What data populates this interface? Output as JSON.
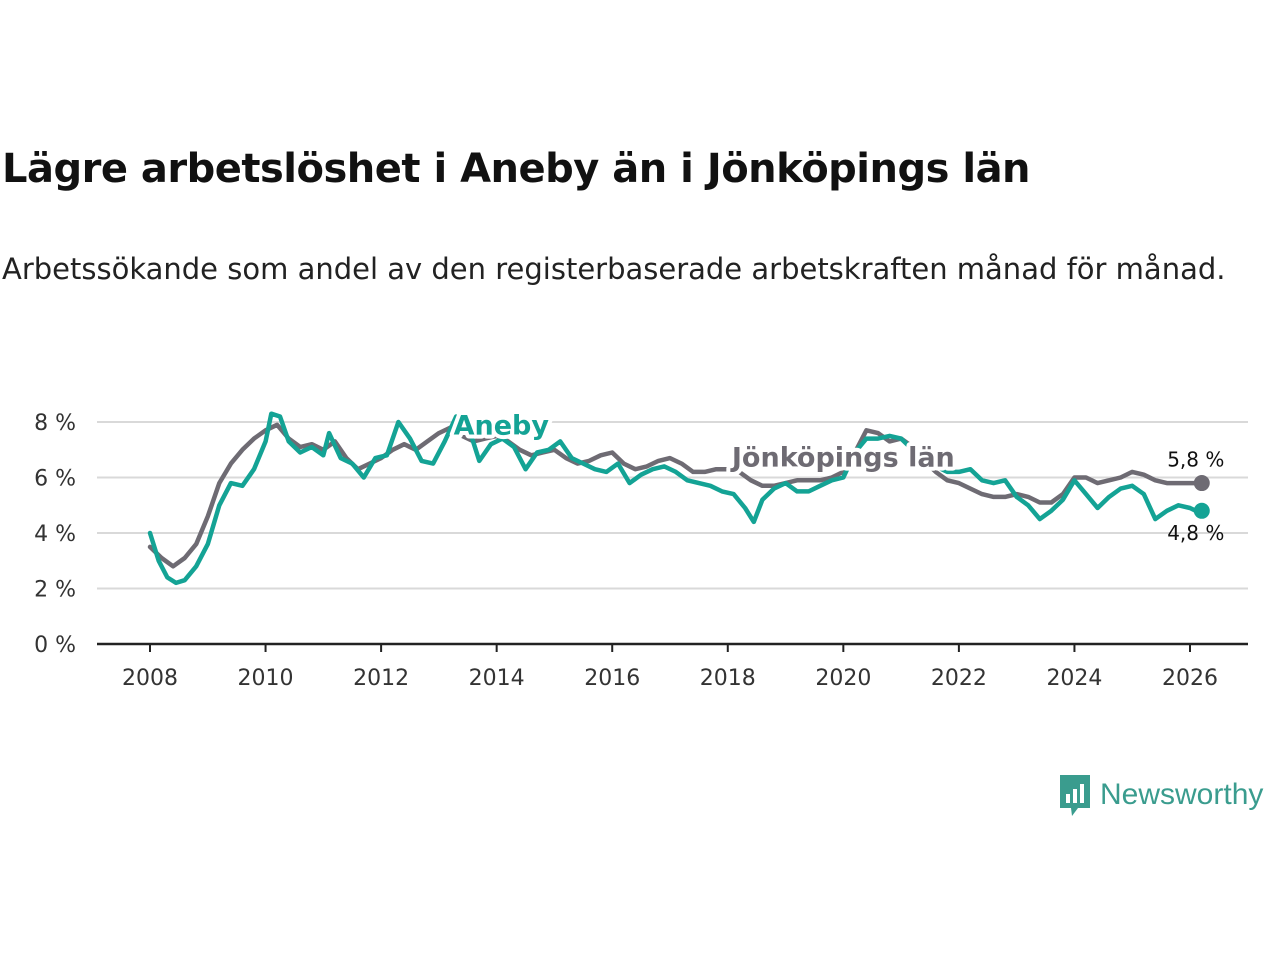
{
  "chart_data": {
    "type": "line",
    "title": "Lägre arbetslöshet i Aneby än i Jönköpings län",
    "subtitle": "Arbetssökande som andel av den registerbaserade arbetskraften månad för månad.",
    "xlim": [
      2007.8,
      2026.95
    ],
    "ylim": [
      0,
      8.3
    ],
    "x_ticks": [
      2008,
      2010,
      2012,
      2014,
      2016,
      2018,
      2020,
      2022,
      2024,
      2026
    ],
    "x_tick_labels": [
      "2008",
      "2010",
      "2012",
      "2014",
      "2016",
      "2018",
      "2020",
      "2022",
      "2024",
      "2026"
    ],
    "y_ticks": [
      0,
      2,
      4,
      6,
      8
    ],
    "y_tick_labels": [
      "0 %",
      "2 %",
      "4 %",
      "6 %",
      "8 %"
    ],
    "series": [
      {
        "name": "Jönköpings län",
        "color": "#6e6b73",
        "end_label": "5,8 %",
        "points": [
          [
            2008.0,
            3.5
          ],
          [
            2008.2,
            3.1
          ],
          [
            2008.4,
            2.8
          ],
          [
            2008.6,
            3.1
          ],
          [
            2008.8,
            3.6
          ],
          [
            2009.0,
            4.6
          ],
          [
            2009.2,
            5.8
          ],
          [
            2009.4,
            6.5
          ],
          [
            2009.6,
            7.0
          ],
          [
            2009.8,
            7.4
          ],
          [
            2010.0,
            7.7
          ],
          [
            2010.2,
            7.9
          ],
          [
            2010.4,
            7.4
          ],
          [
            2010.6,
            7.1
          ],
          [
            2010.8,
            7.2
          ],
          [
            2011.0,
            7.0
          ],
          [
            2011.2,
            7.3
          ],
          [
            2011.4,
            6.7
          ],
          [
            2011.6,
            6.3
          ],
          [
            2011.8,
            6.5
          ],
          [
            2012.0,
            6.7
          ],
          [
            2012.2,
            7.0
          ],
          [
            2012.4,
            7.2
          ],
          [
            2012.6,
            7.0
          ],
          [
            2012.8,
            7.3
          ],
          [
            2013.0,
            7.6
          ],
          [
            2013.2,
            7.8
          ],
          [
            2013.4,
            7.5
          ],
          [
            2013.6,
            7.3
          ],
          [
            2013.8,
            7.4
          ],
          [
            2014.0,
            7.5
          ],
          [
            2014.2,
            7.3
          ],
          [
            2014.4,
            7.0
          ],
          [
            2014.6,
            6.8
          ],
          [
            2014.8,
            6.9
          ],
          [
            2015.0,
            7.0
          ],
          [
            2015.2,
            6.7
          ],
          [
            2015.4,
            6.5
          ],
          [
            2015.6,
            6.6
          ],
          [
            2015.8,
            6.8
          ],
          [
            2016.0,
            6.9
          ],
          [
            2016.2,
            6.5
          ],
          [
            2016.4,
            6.3
          ],
          [
            2016.6,
            6.4
          ],
          [
            2016.8,
            6.6
          ],
          [
            2017.0,
            6.7
          ],
          [
            2017.2,
            6.5
          ],
          [
            2017.4,
            6.2
          ],
          [
            2017.6,
            6.2
          ],
          [
            2017.8,
            6.3
          ],
          [
            2018.0,
            6.3
          ],
          [
            2018.2,
            6.2
          ],
          [
            2018.4,
            5.9
          ],
          [
            2018.6,
            5.7
          ],
          [
            2018.8,
            5.7
          ],
          [
            2019.0,
            5.8
          ],
          [
            2019.2,
            5.9
          ],
          [
            2019.4,
            5.9
          ],
          [
            2019.6,
            5.9
          ],
          [
            2019.8,
            6.0
          ],
          [
            2020.0,
            6.2
          ],
          [
            2020.2,
            6.9
          ],
          [
            2020.4,
            7.7
          ],
          [
            2020.6,
            7.6
          ],
          [
            2020.8,
            7.3
          ],
          [
            2021.0,
            7.4
          ],
          [
            2021.2,
            7.1
          ],
          [
            2021.4,
            6.6
          ],
          [
            2021.6,
            6.2
          ],
          [
            2021.8,
            5.9
          ],
          [
            2022.0,
            5.8
          ],
          [
            2022.2,
            5.6
          ],
          [
            2022.4,
            5.4
          ],
          [
            2022.6,
            5.3
          ],
          [
            2022.8,
            5.3
          ],
          [
            2023.0,
            5.4
          ],
          [
            2023.2,
            5.3
          ],
          [
            2023.4,
            5.1
          ],
          [
            2023.6,
            5.1
          ],
          [
            2023.8,
            5.4
          ],
          [
            2024.0,
            6.0
          ],
          [
            2024.2,
            6.0
          ],
          [
            2024.4,
            5.8
          ],
          [
            2024.6,
            5.9
          ],
          [
            2024.8,
            6.0
          ],
          [
            2025.0,
            6.2
          ],
          [
            2025.2,
            6.1
          ],
          [
            2025.4,
            5.9
          ],
          [
            2025.6,
            5.8
          ],
          [
            2025.8,
            5.8
          ],
          [
            2026.0,
            5.8
          ],
          [
            2026.1,
            5.8
          ]
        ]
      },
      {
        "name": "Aneby",
        "color": "#14a395",
        "end_label": "4,8 %",
        "points": [
          [
            2008.0,
            4.0
          ],
          [
            2008.15,
            3.0
          ],
          [
            2008.3,
            2.4
          ],
          [
            2008.45,
            2.2
          ],
          [
            2008.6,
            2.3
          ],
          [
            2008.8,
            2.8
          ],
          [
            2009.0,
            3.6
          ],
          [
            2009.2,
            5.0
          ],
          [
            2009.4,
            5.8
          ],
          [
            2009.6,
            5.7
          ],
          [
            2009.8,
            6.3
          ],
          [
            2010.0,
            7.3
          ],
          [
            2010.1,
            8.3
          ],
          [
            2010.25,
            8.2
          ],
          [
            2010.4,
            7.3
          ],
          [
            2010.6,
            6.9
          ],
          [
            2010.8,
            7.1
          ],
          [
            2011.0,
            6.8
          ],
          [
            2011.1,
            7.6
          ],
          [
            2011.3,
            6.7
          ],
          [
            2011.5,
            6.5
          ],
          [
            2011.7,
            6.0
          ],
          [
            2011.9,
            6.7
          ],
          [
            2012.1,
            6.8
          ],
          [
            2012.3,
            8.0
          ],
          [
            2012.5,
            7.4
          ],
          [
            2012.7,
            6.6
          ],
          [
            2012.9,
            6.5
          ],
          [
            2013.1,
            7.3
          ],
          [
            2013.3,
            8.2
          ],
          [
            2013.5,
            7.9
          ],
          [
            2013.7,
            6.6
          ],
          [
            2013.9,
            7.2
          ],
          [
            2014.1,
            7.4
          ],
          [
            2014.3,
            7.1
          ],
          [
            2014.5,
            6.3
          ],
          [
            2014.7,
            6.9
          ],
          [
            2014.9,
            7.0
          ],
          [
            2015.1,
            7.3
          ],
          [
            2015.3,
            6.7
          ],
          [
            2015.5,
            6.5
          ],
          [
            2015.7,
            6.3
          ],
          [
            2015.9,
            6.2
          ],
          [
            2016.1,
            6.5
          ],
          [
            2016.3,
            5.8
          ],
          [
            2016.5,
            6.1
          ],
          [
            2016.7,
            6.3
          ],
          [
            2016.9,
            6.4
          ],
          [
            2017.1,
            6.2
          ],
          [
            2017.3,
            5.9
          ],
          [
            2017.5,
            5.8
          ],
          [
            2017.7,
            5.7
          ],
          [
            2017.9,
            5.5
          ],
          [
            2018.1,
            5.4
          ],
          [
            2018.3,
            4.9
          ],
          [
            2018.45,
            4.4
          ],
          [
            2018.6,
            5.2
          ],
          [
            2018.8,
            5.6
          ],
          [
            2019.0,
            5.8
          ],
          [
            2019.2,
            5.5
          ],
          [
            2019.4,
            5.5
          ],
          [
            2019.6,
            5.7
          ],
          [
            2019.8,
            5.9
          ],
          [
            2020.0,
            6.0
          ],
          [
            2020.2,
            6.9
          ],
          [
            2020.4,
            7.4
          ],
          [
            2020.6,
            7.4
          ],
          [
            2020.8,
            7.5
          ],
          [
            2021.0,
            7.4
          ],
          [
            2021.2,
            7.0
          ],
          [
            2021.4,
            6.7
          ],
          [
            2021.6,
            6.4
          ],
          [
            2021.8,
            6.2
          ],
          [
            2022.0,
            6.2
          ],
          [
            2022.2,
            6.3
          ],
          [
            2022.4,
            5.9
          ],
          [
            2022.6,
            5.8
          ],
          [
            2022.8,
            5.9
          ],
          [
            2023.0,
            5.3
          ],
          [
            2023.2,
            5.0
          ],
          [
            2023.4,
            4.5
          ],
          [
            2023.6,
            4.8
          ],
          [
            2023.8,
            5.2
          ],
          [
            2024.0,
            5.9
          ],
          [
            2024.2,
            5.4
          ],
          [
            2024.4,
            4.9
          ],
          [
            2024.6,
            5.3
          ],
          [
            2024.8,
            5.6
          ],
          [
            2025.0,
            5.7
          ],
          [
            2025.2,
            5.4
          ],
          [
            2025.4,
            4.5
          ],
          [
            2025.6,
            4.8
          ],
          [
            2025.8,
            5.0
          ],
          [
            2026.0,
            4.9
          ],
          [
            2026.1,
            4.8
          ]
        ]
      }
    ]
  },
  "logo": {
    "text": "Newsworthy"
  }
}
